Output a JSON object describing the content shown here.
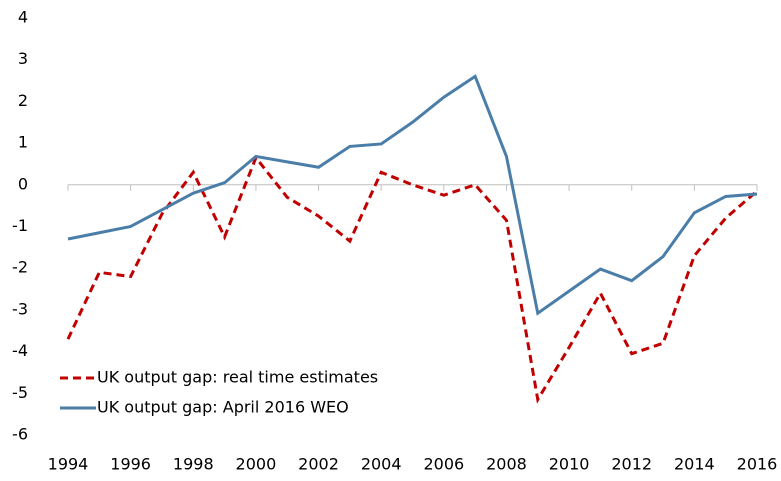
{
  "chart_data": {
    "type": "line",
    "x": [
      1994,
      1995,
      1996,
      1997,
      1998,
      1999,
      2000,
      2001,
      2002,
      2003,
      2004,
      2005,
      2006,
      2007,
      2008,
      2009,
      2010,
      2011,
      2012,
      2013,
      2014,
      2015,
      2016
    ],
    "series": [
      {
        "name": "UK output gap: real time estimates",
        "color": "#c00000",
        "dash": true,
        "values": [
          -3.7,
          -2.1,
          -2.2,
          -0.7,
          0.3,
          -1.25,
          0.65,
          -0.3,
          -0.75,
          -1.35,
          0.3,
          0.0,
          -0.25,
          0.0,
          -0.85,
          -5.15,
          -3.9,
          -2.6,
          -4.05,
          -3.8,
          -1.7,
          -0.8,
          -0.15
        ]
      },
      {
        "name": "UK output gap: April 2016 WEO",
        "color": "#4a7ea8",
        "dash": false,
        "values": [
          -1.3,
          -1.15,
          -1.0,
          -0.6,
          -0.2,
          0.05,
          0.68,
          0.55,
          0.42,
          0.92,
          0.98,
          1.5,
          2.1,
          2.6,
          0.68,
          -3.08,
          -2.55,
          -2.02,
          -2.3,
          -1.72,
          -0.67,
          -0.28,
          -0.22
        ]
      }
    ],
    "xlim": [
      1994,
      2016
    ],
    "xticks": [
      1994,
      1996,
      1998,
      2000,
      2002,
      2004,
      2006,
      2008,
      2010,
      2012,
      2014,
      2016
    ],
    "ylim": [
      -6,
      4
    ],
    "yticks": [
      -6,
      -5,
      -4,
      -3,
      -2,
      -1,
      0,
      1,
      2,
      3,
      4
    ],
    "legend": "lower-left"
  }
}
